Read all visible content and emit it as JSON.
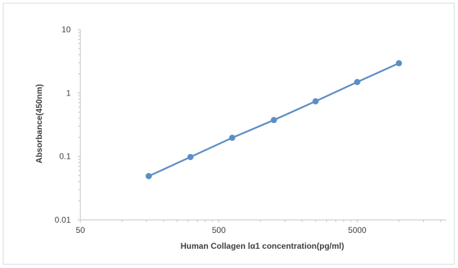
{
  "chart_data": {
    "type": "scatter",
    "title": "",
    "xlabel": "Human Collagen Ⅰα1 concentration(pg/ml)",
    "ylabel": "Absorbance(450nm)",
    "x_scale": "log",
    "y_scale": "log",
    "xlim": [
      50,
      22000
    ],
    "ylim": [
      0.01,
      10
    ],
    "x_ticks": [
      "50",
      "500",
      "5000"
    ],
    "y_ticks": [
      "10",
      "1",
      "0.1",
      "0.01"
    ],
    "grid": false,
    "legend": "none",
    "series": [
      {
        "x": [
          156,
          312,
          625,
          1250,
          2500,
          5000,
          10000
        ],
        "y": [
          0.049,
          0.098,
          0.197,
          0.375,
          0.74,
          1.49,
          2.95
        ],
        "line": "straight",
        "markers": "circle"
      }
    ],
    "colors": {
      "series": "#5b8ec4",
      "axis": "#bfbfbf",
      "text": "#404040"
    }
  }
}
